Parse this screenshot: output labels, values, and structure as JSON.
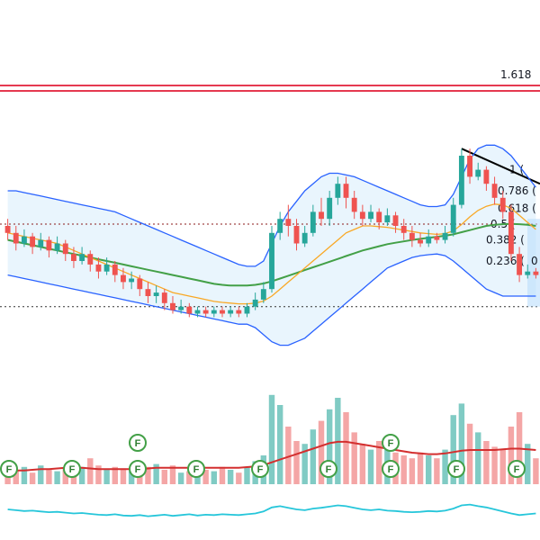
{
  "chart_data": {
    "type": "candlestick",
    "price_range": [
      0,
      100
    ],
    "fib_levels": [
      {
        "label": "1.618",
        "value": 100
      },
      {
        "label": "1 (",
        "value": 76
      },
      {
        "label": "0.786 (",
        "value": 70
      },
      {
        "label": "0.618 (",
        "value": 65
      },
      {
        "label": "0.5 (",
        "value": 60.5
      },
      {
        "label": "0.382 (",
        "value": 56
      },
      {
        "label": "0.236 (",
        "value": 50
      }
    ],
    "fib_partial_label": "0",
    "event_markers": {
      "label": "F",
      "lower_row_x": [
        10,
        80,
        153,
        218,
        289,
        365,
        434,
        507,
        574
      ],
      "upper_row_x": [
        153,
        434
      ]
    },
    "candles": [
      [
        60,
        58,
        62,
        56
      ],
      [
        58,
        55,
        60,
        53
      ],
      [
        55,
        57,
        59,
        54
      ],
      [
        57,
        54,
        58,
        52
      ],
      [
        54,
        56,
        58,
        53
      ],
      [
        56,
        53,
        57,
        51
      ],
      [
        53,
        55,
        57,
        52
      ],
      [
        55,
        52,
        56,
        50
      ],
      [
        52,
        50,
        54,
        48
      ],
      [
        50,
        52,
        54,
        49
      ],
      [
        52,
        49,
        53,
        47
      ],
      [
        49,
        47,
        51,
        45
      ],
      [
        47,
        49,
        51,
        46
      ],
      [
        49,
        46,
        50,
        44
      ],
      [
        46,
        44,
        48,
        42
      ],
      [
        44,
        45,
        47,
        42
      ],
      [
        45,
        42,
        46,
        40
      ],
      [
        42,
        40,
        44,
        38
      ],
      [
        40,
        41,
        43,
        38
      ],
      [
        41,
        38,
        42,
        36
      ],
      [
        38,
        36,
        40,
        35
      ],
      [
        36,
        37,
        39,
        35
      ],
      [
        37,
        35,
        38,
        34
      ],
      [
        35,
        36,
        37,
        34
      ],
      [
        36,
        35,
        37,
        34
      ],
      [
        35,
        36,
        37,
        34
      ],
      [
        36,
        35,
        37,
        34
      ],
      [
        35,
        36,
        37,
        34
      ],
      [
        36,
        35,
        37,
        34
      ],
      [
        35,
        37,
        38,
        34
      ],
      [
        37,
        39,
        41,
        36
      ],
      [
        39,
        42,
        44,
        38
      ],
      [
        42,
        58,
        60,
        41
      ],
      [
        58,
        62,
        64,
        56
      ],
      [
        62,
        60,
        66,
        57
      ],
      [
        60,
        55,
        62,
        53
      ],
      [
        55,
        58,
        60,
        54
      ],
      [
        58,
        64,
        66,
        57
      ],
      [
        64,
        62,
        68,
        60
      ],
      [
        62,
        68,
        70,
        60
      ],
      [
        68,
        72,
        74,
        66
      ],
      [
        72,
        68,
        74,
        65
      ],
      [
        68,
        64,
        70,
        62
      ],
      [
        64,
        62,
        66,
        60
      ],
      [
        62,
        64,
        66,
        61
      ],
      [
        64,
        61,
        65,
        59
      ],
      [
        61,
        63,
        65,
        60
      ],
      [
        63,
        60,
        64,
        58
      ],
      [
        60,
        58,
        62,
        56
      ],
      [
        58,
        56,
        60,
        54
      ],
      [
        56,
        55,
        58,
        54
      ],
      [
        55,
        57,
        59,
        54
      ],
      [
        57,
        56,
        58,
        55
      ],
      [
        56,
        58,
        60,
        55
      ],
      [
        58,
        66,
        68,
        57
      ],
      [
        66,
        80,
        82,
        65
      ],
      [
        80,
        74,
        82,
        72
      ],
      [
        74,
        76,
        78,
        73
      ],
      [
        76,
        72,
        77,
        70
      ],
      [
        72,
        68,
        74,
        66
      ],
      [
        68,
        64,
        70,
        62
      ],
      [
        64,
        52,
        66,
        50
      ],
      [
        52,
        46,
        54,
        44
      ],
      [
        46,
        47,
        49,
        45
      ],
      [
        47,
        46,
        48,
        45
      ]
    ],
    "ma_slow": [
      56,
      55.5,
      55,
      54.5,
      54,
      53.5,
      53,
      52.5,
      52,
      51.5,
      51,
      50.5,
      50,
      49.5,
      49,
      48.5,
      48,
      47.5,
      47,
      46.5,
      46,
      45.5,
      45,
      44.5,
      44,
      43.5,
      43.2,
      43,
      43,
      43,
      43.2,
      43.6,
      44.2,
      45,
      45.8,
      46.6,
      47.4,
      48.2,
      49,
      49.8,
      50.6,
      51.4,
      52.2,
      53,
      53.6,
      54.2,
      54.8,
      55.2,
      55.6,
      56,
      56.3,
      56.6,
      56.9,
      57.2,
      57.6,
      58.2,
      58.8,
      59.4,
      60,
      60.3,
      60.5,
      60.6,
      60.5,
      60.3,
      60
    ],
    "ma_fast": [
      58,
      57.5,
      57,
      56.5,
      56,
      55.5,
      55,
      54,
      53,
      52,
      51,
      50,
      49,
      48,
      47,
      46,
      45,
      44,
      43,
      42,
      41,
      40.5,
      40,
      39.5,
      39,
      38.5,
      38.2,
      38,
      37.8,
      37.8,
      38,
      38.6,
      40,
      42,
      44,
      46,
      48,
      50,
      52,
      54,
      56,
      58,
      59,
      60,
      60,
      59.8,
      59.6,
      59.2,
      58.8,
      58.4,
      58,
      57.8,
      57.6,
      57.8,
      58.6,
      60.4,
      62.6,
      64.4,
      65.6,
      66.2,
      66,
      65,
      63,
      61,
      59
    ],
    "bb_upper": [
      70,
      70,
      69.5,
      69,
      68.5,
      68,
      67.5,
      67,
      66.5,
      66,
      65.5,
      65,
      64.5,
      64,
      63,
      62,
      61,
      60,
      59,
      58,
      57,
      56,
      55,
      54,
      53,
      52,
      51,
      50,
      49,
      48.5,
      48.5,
      50,
      55,
      60,
      64,
      67,
      70,
      72,
      74,
      75,
      75,
      74.5,
      74,
      73,
      72,
      71,
      70,
      69,
      68,
      67,
      66,
      65.5,
      65.5,
      66,
      69,
      74,
      79,
      82,
      83,
      83,
      82,
      80,
      77,
      74,
      71
    ],
    "bb_lower": [
      46,
      45.5,
      45,
      44.5,
      44,
      43.5,
      43,
      42.5,
      42,
      41.5,
      41,
      40.5,
      40,
      39.5,
      39,
      38.5,
      38,
      37.5,
      37,
      36.5,
      36,
      35.5,
      35,
      34.5,
      34,
      33.5,
      33,
      32.5,
      32,
      32,
      31,
      29,
      27,
      26,
      26,
      27,
      28,
      30,
      32,
      34,
      36,
      38,
      40,
      42,
      44,
      46,
      48,
      49,
      50,
      51,
      51.5,
      51.8,
      52,
      51.5,
      50,
      48,
      46,
      44,
      42,
      41,
      40,
      40,
      40,
      40,
      40
    ],
    "volumes": [
      14,
      9,
      12,
      8,
      13,
      10,
      9,
      11,
      15,
      12,
      18,
      13,
      10,
      12,
      11,
      9,
      10,
      12,
      14,
      10,
      13,
      8,
      9,
      11,
      10,
      9,
      12,
      10,
      8,
      12,
      16,
      20,
      62,
      55,
      40,
      30,
      28,
      38,
      44,
      52,
      60,
      50,
      36,
      28,
      24,
      30,
      26,
      22,
      20,
      18,
      22,
      20,
      18,
      24,
      48,
      56,
      42,
      36,
      30,
      26,
      24,
      40,
      50,
      28,
      18
    ],
    "volume_ma": [
      10,
      10,
      10,
      10.5,
      11,
      11,
      11.5,
      12,
      12,
      12,
      11.5,
      11,
      11,
      11,
      11,
      11,
      11,
      11.5,
      12,
      12,
      12,
      12,
      12,
      12,
      12,
      12,
      12,
      12,
      12,
      12.5,
      13,
      14,
      16,
      18,
      20,
      22,
      24,
      26,
      28,
      30,
      31,
      31,
      30,
      29,
      28,
      27,
      26,
      25,
      24,
      23,
      22.5,
      22,
      22,
      22.5,
      23.5,
      24.5,
      25,
      25,
      25,
      25,
      25.5,
      26,
      26,
      25.5,
      25
    ],
    "oscillator": [
      50,
      48,
      46,
      47,
      45,
      43,
      44,
      42,
      40,
      41,
      39,
      37,
      36,
      38,
      35,
      34,
      36,
      33,
      35,
      37,
      34,
      36,
      38,
      35,
      37,
      36,
      38,
      37,
      36,
      38,
      40,
      45,
      55,
      58,
      54,
      50,
      48,
      52,
      54,
      57,
      60,
      58,
      54,
      50,
      48,
      50,
      47,
      46,
      44,
      43,
      44,
      46,
      45,
      47,
      52,
      60,
      62,
      58,
      55,
      50,
      45,
      40,
      36,
      38,
      40
    ]
  }
}
